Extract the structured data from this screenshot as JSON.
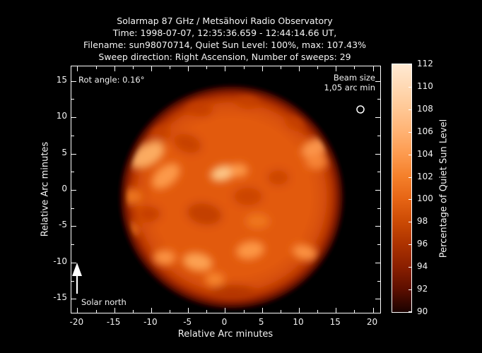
{
  "header": {
    "lines": [
      "Solarmap 87 GHz / Metsähovi Radio Observatory",
      "Time: 1998-07-07, 12:35:36.659 - 12:44:14.66 UT,",
      "Filename: sun98070714, Quiet Sun Level: 100%, max: 107.43%",
      "Sweep direction: Right Ascension, Number of sweeps: 29"
    ]
  },
  "plot": {
    "annotations": {
      "rot_angle": "Rot angle: 0.16°",
      "beam_size_line1": "Beam size",
      "beam_size_line2": "1,05 arc min",
      "solar_north": "Solar north"
    }
  },
  "chart_data": {
    "type": "heatmap",
    "title": "Solarmap 87 GHz / Metsähovi Radio Observatory",
    "subtitle_lines": [
      "Time: 1998-07-07, 12:35:36.659 - 12:44:14.66 UT,",
      "Filename: sun98070714, Quiet Sun Level: 100%, max: 107.43%",
      "Sweep direction: Right Ascension, Number of sweeps: 29"
    ],
    "xlabel": "Relative Arc minutes",
    "ylabel": "Relative Arc minutes",
    "xlim": [
      -20.8,
      21.0
    ],
    "ylim": [
      -16.9,
      17.0
    ],
    "x_major_ticks": [
      -20,
      -15,
      -10,
      -5,
      0,
      5,
      10,
      15,
      20
    ],
    "y_major_ticks": [
      -15,
      -10,
      -5,
      0,
      5,
      10,
      15
    ],
    "minor_tick_step": 2.5,
    "grid": false,
    "background_color": "#000000",
    "text_color": "#f2f2f2",
    "quiet_sun_level_percent": 100,
    "max_level_percent": 107.43,
    "beam_size_arcmin": 1.05,
    "rotation_angle_deg": 0.16,
    "sweeps": 29,
    "sun_disk": {
      "center_x_arcmin": 0.9,
      "center_y_arcmin": -1.0,
      "radius_arcmin": 15.4,
      "base_color": "#e25a0e",
      "rim_stops": [
        {
          "offset": 0.0,
          "color": "#e25a0e"
        },
        {
          "offset": 0.7,
          "color": "#e25a0e"
        },
        {
          "offset": 0.82,
          "color": "#d54e08"
        },
        {
          "offset": 0.89,
          "color": "#b63403"
        },
        {
          "offset": 0.94,
          "color": "#7e1800"
        },
        {
          "offset": 0.98,
          "color": "#2e0500"
        },
        {
          "offset": 1.0,
          "color": "#000000"
        }
      ]
    },
    "features": [
      {
        "kind": "bright",
        "x": -10.6,
        "y": 4.8,
        "rx": 2.6,
        "ry": 1.5,
        "rot": -30,
        "color": "#ffb468"
      },
      {
        "kind": "bright",
        "x": -8.0,
        "y": 1.9,
        "rx": 2.2,
        "ry": 1.3,
        "rot": -40,
        "color": "#ff9e4e"
      },
      {
        "kind": "bright",
        "x": -12.8,
        "y": -0.9,
        "rx": 1.6,
        "ry": 1.1,
        "rot": 0,
        "color": "#f07a1e"
      },
      {
        "kind": "bright",
        "x": -0.3,
        "y": 2.3,
        "rx": 1.7,
        "ry": 1.0,
        "rot": -15,
        "color": "#ffd094"
      },
      {
        "kind": "bright",
        "x": 1.8,
        "y": 2.7,
        "rx": 1.3,
        "ry": 0.9,
        "rot": 0,
        "color": "#ff9e4e"
      },
      {
        "kind": "bright",
        "x": 12.2,
        "y": 5.8,
        "rx": 2.0,
        "ry": 1.2,
        "rot": -25,
        "color": "#ff9c50"
      },
      {
        "kind": "bright",
        "x": 12.4,
        "y": 3.9,
        "rx": 1.5,
        "ry": 1.1,
        "rot": 0,
        "color": "#f8883a"
      },
      {
        "kind": "bright",
        "x": -3.7,
        "y": -9.9,
        "rx": 2.0,
        "ry": 1.2,
        "rot": 10,
        "color": "#ffa858"
      },
      {
        "kind": "bright",
        "x": 3.4,
        "y": -8.3,
        "rx": 1.9,
        "ry": 1.2,
        "rot": -10,
        "color": "#ff9c4a"
      },
      {
        "kind": "bright",
        "x": 10.8,
        "y": -8.6,
        "rx": 1.7,
        "ry": 1.0,
        "rot": 15,
        "color": "#ff9848"
      },
      {
        "kind": "bright",
        "x": -8.2,
        "y": -9.3,
        "rx": 1.5,
        "ry": 1.0,
        "rot": 0,
        "color": "#ff9848"
      },
      {
        "kind": "bright",
        "x": -1.4,
        "y": -12.3,
        "rx": 1.3,
        "ry": 0.9,
        "rot": 0,
        "color": "#f88a34"
      },
      {
        "kind": "bright",
        "x": 4.4,
        "y": -4.3,
        "rx": 1.6,
        "ry": 1.0,
        "rot": 0,
        "color": "#f0791f"
      },
      {
        "kind": "bright",
        "x": -13.0,
        "y": -5.5,
        "rx": 1.3,
        "ry": 1.0,
        "rot": 0,
        "color": "#ef7419"
      },
      {
        "kind": "dark",
        "x": -5.1,
        "y": 6.4,
        "rx": 2.0,
        "ry": 1.3,
        "rot": 20,
        "color": "#c64106"
      },
      {
        "kind": "dark",
        "x": -8.8,
        "y": 7.8,
        "rx": 1.4,
        "ry": 1.0,
        "rot": 0,
        "color": "#c64106"
      },
      {
        "kind": "dark",
        "x": -2.8,
        "y": -3.3,
        "rx": 2.4,
        "ry": 1.5,
        "rot": 10,
        "color": "#c03c05"
      },
      {
        "kind": "dark",
        "x": -10.2,
        "y": -3.3,
        "rx": 1.5,
        "ry": 1.1,
        "rot": 0,
        "color": "#c43e06"
      },
      {
        "kind": "dark",
        "x": 3.1,
        "y": -0.9,
        "rx": 2.0,
        "ry": 1.3,
        "rot": 0,
        "color": "#ca4307"
      },
      {
        "kind": "dark",
        "x": 7.2,
        "y": 1.7,
        "rx": 1.5,
        "ry": 1.1,
        "rot": 0,
        "color": "#ca4307"
      },
      {
        "kind": "dark",
        "x": -3.5,
        "y": 11.2,
        "rx": 1.8,
        "ry": 1.0,
        "rot": 10,
        "color": "#c43e06"
      },
      {
        "kind": "dark",
        "x": 3.1,
        "y": 12.2,
        "rx": 1.5,
        "ry": 0.9,
        "rot": 0,
        "color": "#c64106"
      },
      {
        "kind": "dark",
        "x": 9.6,
        "y": 9.3,
        "rx": 1.3,
        "ry": 0.9,
        "rot": 0,
        "color": "#c64106"
      },
      {
        "kind": "dark",
        "x": 1.0,
        "y": -14.0,
        "rx": 3.0,
        "ry": 0.8,
        "rot": 0,
        "color": "#b23505"
      }
    ],
    "colorbar": {
      "label": "Percentage of Quiet Sun Level",
      "min": 90,
      "max": 112,
      "ticks": [
        90,
        92,
        94,
        96,
        98,
        100,
        102,
        104,
        106,
        108,
        110,
        112
      ],
      "gradient_stops": [
        {
          "value": 90,
          "color": "#1a0200"
        },
        {
          "value": 92,
          "color": "#5c0e00"
        },
        {
          "value": 94,
          "color": "#8a1f00"
        },
        {
          "value": 96,
          "color": "#ac3200"
        },
        {
          "value": 98,
          "color": "#cb4a04"
        },
        {
          "value": 100,
          "color": "#e66414"
        },
        {
          "value": 102,
          "color": "#f47f2a"
        },
        {
          "value": 104,
          "color": "#fd9a4e"
        },
        {
          "value": 106,
          "color": "#ffb273"
        },
        {
          "value": 108,
          "color": "#ffc794"
        },
        {
          "value": 110,
          "color": "#ffd9b4"
        },
        {
          "value": 112,
          "color": "#ffe9d2"
        }
      ]
    }
  }
}
